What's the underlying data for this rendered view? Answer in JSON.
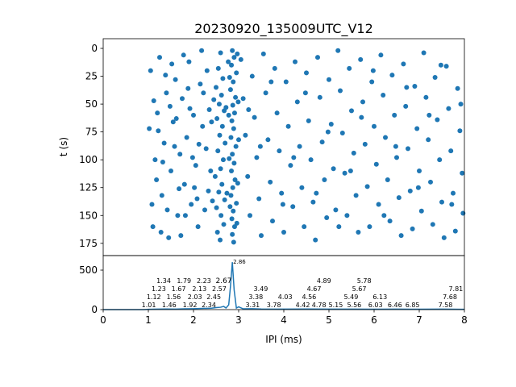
{
  "chart_data": [
    {
      "type": "scatter",
      "title": "20230920_135009UTC_V12",
      "xlabel": "",
      "ylabel": "t (s)",
      "xlim": [
        0,
        8
      ],
      "ylim": [
        186,
        -8.7
      ],
      "y_inverted": true,
      "yticks": [
        0,
        25,
        50,
        75,
        100,
        125,
        150,
        175
      ],
      "grid": false,
      "color": "#1f77b4",
      "points": [
        [
          2.86,
          2
        ],
        [
          2.9,
          8
        ],
        [
          2.84,
          15
        ],
        [
          2.95,
          22
        ],
        [
          2.88,
          30
        ],
        [
          2.82,
          37
        ],
        [
          2.93,
          44
        ],
        [
          2.87,
          51
        ],
        [
          2.91,
          58
        ],
        [
          2.85,
          65
        ],
        [
          2.89,
          72
        ],
        [
          2.83,
          80
        ],
        [
          2.94,
          88
        ],
        [
          2.86,
          95
        ],
        [
          2.9,
          103
        ],
        [
          2.84,
          110
        ],
        [
          2.92,
          118
        ],
        [
          2.87,
          125
        ],
        [
          2.83,
          132
        ],
        [
          2.95,
          139
        ],
        [
          2.88,
          146
        ],
        [
          2.85,
          153
        ],
        [
          2.91,
          160
        ],
        [
          2.86,
          167
        ],
        [
          2.89,
          174
        ],
        [
          2.97,
          5
        ],
        [
          2.8,
          26
        ],
        [
          2.99,
          48
        ],
        [
          2.78,
          60
        ],
        [
          3.0,
          82
        ],
        [
          2.79,
          99
        ],
        [
          2.98,
          121
        ],
        [
          2.81,
          142
        ],
        [
          2.96,
          157
        ],
        [
          2.77,
          12
        ],
        [
          2.6,
          4
        ],
        [
          2.55,
          18
        ],
        [
          2.65,
          27
        ],
        [
          2.5,
          35
        ],
        [
          2.62,
          42
        ],
        [
          2.57,
          50
        ],
        [
          2.68,
          56
        ],
        [
          2.52,
          63
        ],
        [
          2.64,
          70
        ],
        [
          2.58,
          78
        ],
        [
          2.7,
          85
        ],
        [
          2.54,
          92
        ],
        [
          2.66,
          100
        ],
        [
          2.6,
          108
        ],
        [
          2.48,
          115
        ],
        [
          2.63,
          122
        ],
        [
          2.56,
          129
        ],
        [
          2.69,
          136
        ],
        [
          2.51,
          143
        ],
        [
          2.61,
          150
        ],
        [
          2.67,
          158
        ],
        [
          2.53,
          165
        ],
        [
          2.59,
          172
        ],
        [
          2.45,
          46
        ],
        [
          2.72,
          53
        ],
        [
          2.4,
          66
        ],
        [
          2.74,
          130
        ],
        [
          2.42,
          137
        ],
        [
          2.3,
          20
        ],
        [
          2.35,
          55
        ],
        [
          2.28,
          90
        ],
        [
          2.33,
          128
        ],
        [
          2.25,
          145
        ],
        [
          2.2,
          70
        ],
        [
          2.15,
          32
        ],
        [
          2.1,
          160
        ],
        [
          2.05,
          105
        ],
        [
          2.0,
          60
        ],
        [
          1.95,
          140
        ],
        [
          1.9,
          12
        ],
        [
          1.85,
          80
        ],
        [
          1.8,
          122
        ],
        [
          1.75,
          45
        ],
        [
          1.7,
          95
        ],
        [
          1.65,
          150
        ],
        [
          1.6,
          28
        ],
        [
          1.55,
          66
        ],
        [
          1.5,
          110
        ],
        [
          1.45,
          170
        ],
        [
          1.4,
          40
        ],
        [
          1.35,
          85
        ],
        [
          1.3,
          132
        ],
        [
          1.25,
          8
        ],
        [
          1.2,
          58
        ],
        [
          1.15,
          100
        ],
        [
          1.1,
          160
        ],
        [
          1.05,
          20
        ],
        [
          1.02,
          72
        ],
        [
          1.08,
          140
        ],
        [
          1.18,
          118
        ],
        [
          1.28,
          165
        ],
        [
          1.38,
          24
        ],
        [
          1.48,
          52
        ],
        [
          1.58,
          88
        ],
        [
          1.68,
          126
        ],
        [
          1.78,
          6
        ],
        [
          1.88,
          36
        ],
        [
          1.98,
          98
        ],
        [
          2.08,
          135
        ],
        [
          2.18,
          2
        ],
        [
          2.38,
          110
        ],
        [
          1.62,
          63
        ],
        [
          1.72,
          168
        ],
        [
          1.82,
          150
        ],
        [
          1.92,
          54
        ],
        [
          2.02,
          125
        ],
        [
          2.12,
          86
        ],
        [
          2.22,
          40
        ],
        [
          1.42,
          145
        ],
        [
          1.52,
          14
        ],
        [
          1.32,
          102
        ],
        [
          1.22,
          74
        ],
        [
          1.12,
          47
        ],
        [
          3.05,
          10
        ],
        [
          3.1,
          45
        ],
        [
          3.15,
          78
        ],
        [
          3.2,
          115
        ],
        [
          3.25,
          150
        ],
        [
          3.3,
          25
        ],
        [
          3.35,
          62
        ],
        [
          3.4,
          98
        ],
        [
          3.45,
          135
        ],
        [
          3.5,
          168
        ],
        [
          3.55,
          5
        ],
        [
          3.6,
          40
        ],
        [
          3.65,
          82
        ],
        [
          3.7,
          120
        ],
        [
          3.75,
          155
        ],
        [
          3.8,
          18
        ],
        [
          3.85,
          58
        ],
        [
          3.9,
          92
        ],
        [
          3.95,
          130
        ],
        [
          4.0,
          165
        ],
        [
          4.05,
          30
        ],
        [
          4.1,
          70
        ],
        [
          4.15,
          105
        ],
        [
          4.2,
          142
        ],
        [
          4.25,
          12
        ],
        [
          4.3,
          48
        ],
        [
          4.35,
          88
        ],
        [
          4.4,
          125
        ],
        [
          4.45,
          160
        ],
        [
          4.5,
          22
        ],
        [
          4.55,
          65
        ],
        [
          4.6,
          100
        ],
        [
          4.65,
          138
        ],
        [
          4.7,
          172
        ],
        [
          4.75,
          8
        ],
        [
          4.8,
          44
        ],
        [
          4.85,
          84
        ],
        [
          4.9,
          118
        ],
        [
          4.95,
          152
        ],
        [
          5.0,
          28
        ],
        [
          5.05,
          68
        ],
        [
          5.1,
          108
        ],
        [
          5.15,
          145
        ],
        [
          5.2,
          2
        ],
        [
          5.25,
          38
        ],
        [
          5.3,
          76
        ],
        [
          5.35,
          112
        ],
        [
          5.4,
          150
        ],
        [
          5.45,
          18
        ],
        [
          5.5,
          56
        ],
        [
          5.55,
          94
        ],
        [
          5.6,
          132
        ],
        [
          5.65,
          165
        ],
        [
          5.7,
          10
        ],
        [
          5.75,
          48
        ],
        [
          5.8,
          86
        ],
        [
          5.85,
          124
        ],
        [
          5.9,
          160
        ],
        [
          5.95,
          30
        ],
        [
          6.0,
          70
        ],
        [
          6.05,
          104
        ],
        [
          6.1,
          140
        ],
        [
          6.15,
          6
        ],
        [
          6.2,
          42
        ],
        [
          6.25,
          80
        ],
        [
          6.3,
          118
        ],
        [
          6.35,
          155
        ],
        [
          6.4,
          24
        ],
        [
          6.45,
          60
        ],
        [
          6.5,
          98
        ],
        [
          6.55,
          134
        ],
        [
          6.6,
          168
        ],
        [
          6.65,
          14
        ],
        [
          6.7,
          52
        ],
        [
          6.75,
          90
        ],
        [
          6.8,
          128
        ],
        [
          6.85,
          162
        ],
        [
          6.9,
          34
        ],
        [
          6.95,
          72
        ],
        [
          7.0,
          110
        ],
        [
          7.05,
          146
        ],
        [
          7.1,
          4
        ],
        [
          7.15,
          44
        ],
        [
          7.2,
          82
        ],
        [
          7.25,
          120
        ],
        [
          7.3,
          158
        ],
        [
          7.35,
          26
        ],
        [
          7.4,
          64
        ],
        [
          7.45,
          100
        ],
        [
          7.5,
          138
        ],
        [
          7.55,
          170
        ],
        [
          7.6,
          16
        ],
        [
          7.65,
          54
        ],
        [
          7.7,
          92
        ],
        [
          7.75,
          130
        ],
        [
          7.8,
          164
        ],
        [
          7.85,
          36
        ],
        [
          7.9,
          74
        ],
        [
          7.95,
          112
        ],
        [
          7.97,
          148
        ],
        [
          3.22,
          55
        ],
        [
          3.48,
          88
        ],
        [
          3.72,
          30
        ],
        [
          3.98,
          140
        ],
        [
          4.22,
          98
        ],
        [
          4.48,
          40
        ],
        [
          4.72,
          130
        ],
        [
          4.98,
          75
        ],
        [
          5.22,
          160
        ],
        [
          5.48,
          110
        ],
        [
          5.72,
          62
        ],
        [
          5.98,
          20
        ],
        [
          6.22,
          150
        ],
        [
          6.48,
          88
        ],
        [
          6.72,
          35
        ],
        [
          6.98,
          125
        ],
        [
          7.22,
          60
        ],
        [
          7.48,
          15
        ],
        [
          7.72,
          140
        ],
        [
          7.92,
          50
        ]
      ]
    },
    {
      "type": "line",
      "xlabel": "IPI (ms)",
      "ylabel": "",
      "xlim": [
        0,
        8
      ],
      "ylim": [
        0,
        684
      ],
      "xticks": [
        0,
        1,
        2,
        3,
        4,
        5,
        6,
        7,
        8
      ],
      "yticks": [
        0,
        500
      ],
      "color": "#1f77b4",
      "x": [
        0,
        0.9,
        1.0,
        1.2,
        1.4,
        1.6,
        1.8,
        2.0,
        2.2,
        2.4,
        2.5,
        2.6,
        2.67,
        2.72,
        2.78,
        2.82,
        2.86,
        2.9,
        2.95,
        3.0,
        3.1,
        3.3,
        3.5,
        4.0,
        4.5,
        5.0,
        5.5,
        6.0,
        6.5,
        7.0,
        7.5,
        8.0
      ],
      "y": [
        0,
        0,
        4,
        6,
        8,
        6,
        10,
        12,
        15,
        18,
        25,
        30,
        40,
        20,
        60,
        300,
        600,
        250,
        20,
        35,
        10,
        12,
        8,
        6,
        8,
        6,
        7,
        5,
        6,
        5,
        6,
        4
      ],
      "annotations": [
        {
          "x": 1.01,
          "y": 4,
          "label": "1.01"
        },
        {
          "x": 1.12,
          "y": 4,
          "label": "1.12"
        },
        {
          "x": 1.23,
          "y": 4,
          "label": "1.23"
        },
        {
          "x": 1.34,
          "y": 4,
          "label": "1.34"
        },
        {
          "x": 1.46,
          "y": 4,
          "label": "1.46"
        },
        {
          "x": 1.56,
          "y": 4,
          "label": "1.56"
        },
        {
          "x": 1.67,
          "y": 4,
          "label": "1.67"
        },
        {
          "x": 1.79,
          "y": 4,
          "label": "1.79"
        },
        {
          "x": 1.92,
          "y": 4,
          "label": "1.92"
        },
        {
          "x": 2.03,
          "y": 4,
          "label": "2.03"
        },
        {
          "x": 2.13,
          "y": 4,
          "label": "2.13"
        },
        {
          "x": 2.23,
          "y": 4,
          "label": "2.23"
        },
        {
          "x": 2.34,
          "y": 12,
          "label": "2.34"
        },
        {
          "x": 2.45,
          "y": 12,
          "label": "2.45"
        },
        {
          "x": 2.57,
          "y": 12,
          "label": "2.57"
        },
        {
          "x": 2.67,
          "y": 40,
          "label": "2.67"
        },
        {
          "x": 2.86,
          "y": 600,
          "label": "2.86"
        },
        {
          "x": 3.31,
          "y": 4,
          "label": "3.31"
        },
        {
          "x": 3.38,
          "y": 4,
          "label": "3.38"
        },
        {
          "x": 3.49,
          "y": 4,
          "label": "3.49"
        },
        {
          "x": 3.78,
          "y": 4,
          "label": "3.78"
        },
        {
          "x": 4.03,
          "y": 4,
          "label": "4.03"
        },
        {
          "x": 4.42,
          "y": 4,
          "label": "4.42"
        },
        {
          "x": 4.56,
          "y": 4,
          "label": "4.56"
        },
        {
          "x": 4.67,
          "y": 4,
          "label": "4.67"
        },
        {
          "x": 4.78,
          "y": 4,
          "label": "4.78"
        },
        {
          "x": 4.89,
          "y": 4,
          "label": "4.89"
        },
        {
          "x": 5.15,
          "y": 4,
          "label": "5.15"
        },
        {
          "x": 5.49,
          "y": 4,
          "label": "5.49"
        },
        {
          "x": 5.56,
          "y": 4,
          "label": "5.56"
        },
        {
          "x": 5.67,
          "y": 4,
          "label": "5.67"
        },
        {
          "x": 5.78,
          "y": 4,
          "label": "5.78"
        },
        {
          "x": 6.03,
          "y": 4,
          "label": "6.03"
        },
        {
          "x": 6.13,
          "y": 4,
          "label": "6.13"
        },
        {
          "x": 6.46,
          "y": 4,
          "label": "6.46"
        },
        {
          "x": 6.85,
          "y": 4,
          "label": "6.85"
        },
        {
          "x": 7.58,
          "y": 4,
          "label": "7.58"
        },
        {
          "x": 7.68,
          "y": 4,
          "label": "7.68"
        },
        {
          "x": 7.81,
          "y": 4,
          "label": "7.81"
        }
      ]
    }
  ]
}
